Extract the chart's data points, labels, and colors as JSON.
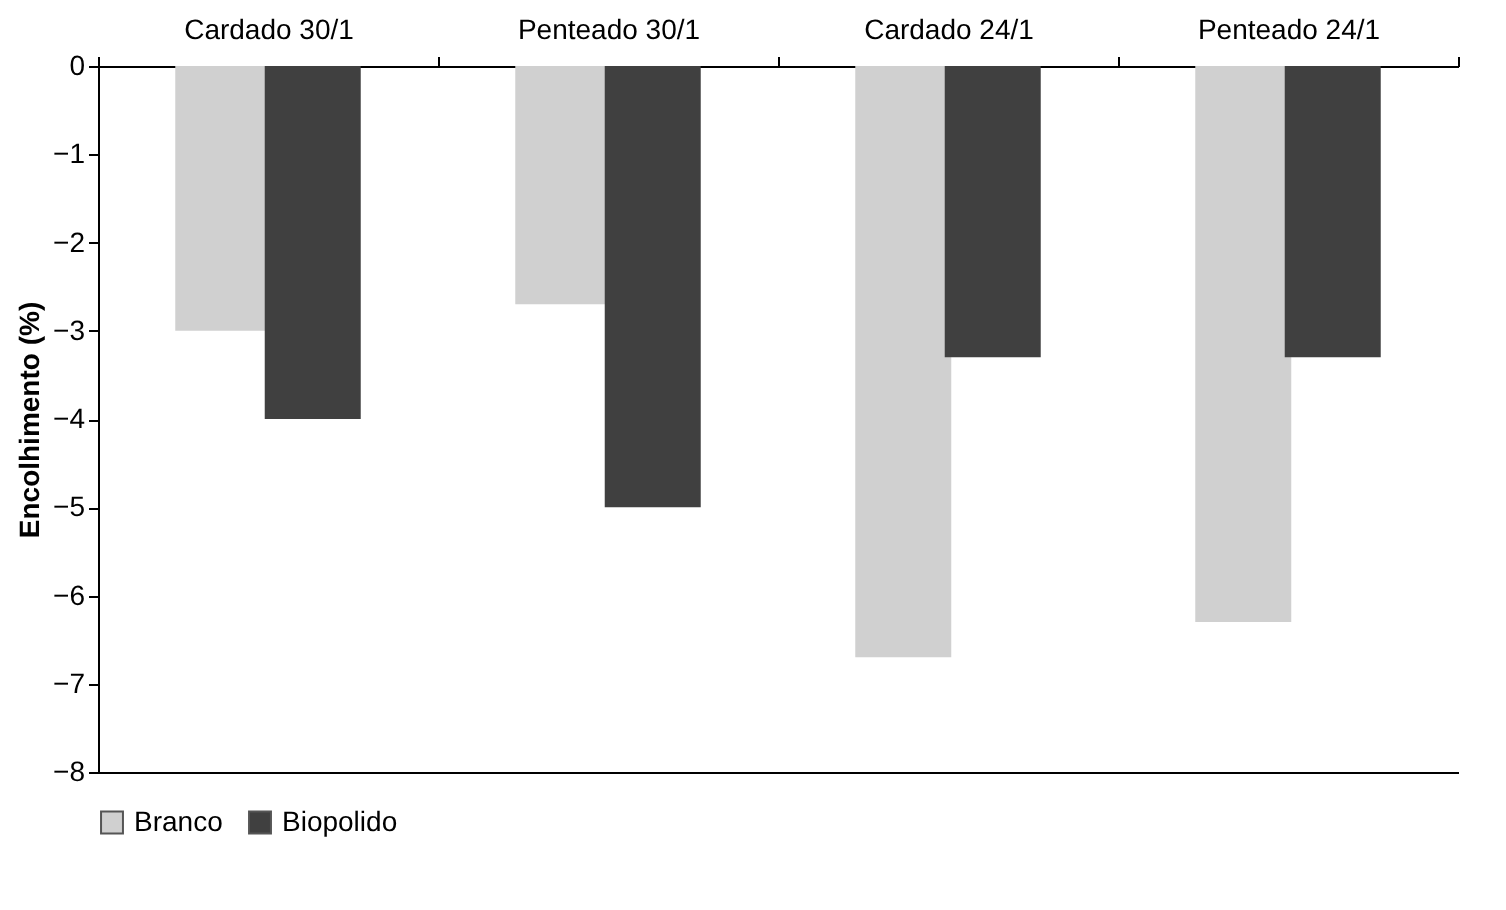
{
  "chart_data": {
    "type": "bar",
    "ylabel": "Encolhimento (%)",
    "categories": [
      "Cardado 30/1",
      "Penteado 30/1",
      "Cardado 24/1",
      "Penteado 24/1"
    ],
    "series": [
      {
        "name": "Branco",
        "color": "#d0d0d0",
        "values": [
          -3,
          -2.7,
          -6.7,
          -6.3
        ]
      },
      {
        "name": "Biopolido",
        "color": "#404040",
        "values": [
          -4,
          -5,
          -3.3,
          -3.3
        ]
      }
    ],
    "ylim": [
      -8,
      0
    ],
    "yticks": [
      0,
      -1,
      -2,
      -3,
      -4,
      -5,
      -6,
      -7,
      -8
    ],
    "grid": false,
    "legend": "bottom"
  }
}
